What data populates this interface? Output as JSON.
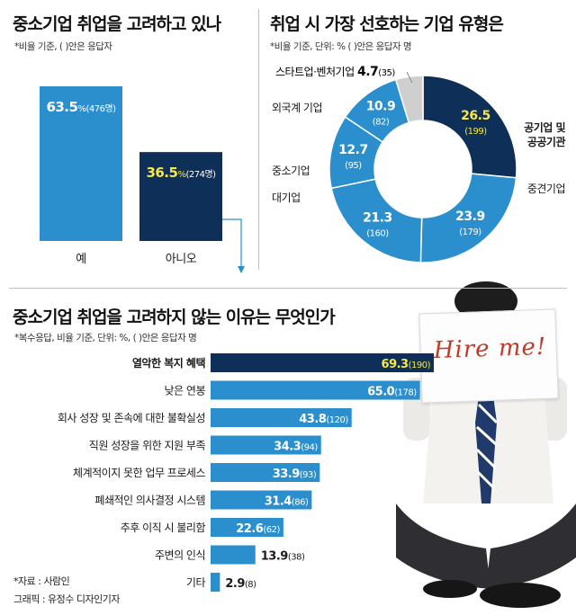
{
  "chart_data": [
    {
      "type": "bar",
      "title": "중소기업 취업을 고려하고 있나",
      "note": "*비율 기준, ( )안은 응답자",
      "categories": [
        "예",
        "아니오"
      ],
      "values": [
        63.5,
        36.5
      ],
      "value_labels": [
        "63.5",
        "36.5"
      ],
      "unit": "%",
      "counts": [
        "(476명)",
        "(274명)"
      ],
      "colors": [
        "#2b8fce",
        "#0e2f57"
      ]
    },
    {
      "type": "pie",
      "title": "취업 시 가장 선호하는 기업 유형은",
      "note": "*비율 기준, 단위: % ( )안은 응답자 명",
      "slices": [
        {
          "label": "공기업 및 공공기관",
          "value": 26.5,
          "value_label": "26.5",
          "count": "(199)",
          "color": "#0e2f57"
        },
        {
          "label": "중견기업",
          "value": 23.9,
          "value_label": "23.9",
          "count": "(179)",
          "color": "#2b8fce"
        },
        {
          "label": "대기업",
          "value": 21.3,
          "value_label": "21.3",
          "count": "(160)",
          "color": "#2b8fce"
        },
        {
          "label": "중소기업",
          "value": 12.7,
          "value_label": "12.7",
          "count": "(95)",
          "color": "#2b8fce"
        },
        {
          "label": "외국계 기업",
          "value": 10.9,
          "value_label": "10.9",
          "count": "(82)",
          "color": "#2b8fce"
        },
        {
          "label": "스타트업·벤처기업",
          "value": 4.7,
          "value_label": "4.7",
          "count": "(35)",
          "color": "#cfcfcf"
        }
      ]
    },
    {
      "type": "bar",
      "orientation": "horizontal",
      "title": "중소기업 취업을 고려하지 않는 이유는 무엇인가",
      "note": "*복수응답, 비율 기준, 단위: %, ( )안은 응답자 명",
      "categories": [
        "열악한 복지 혜택",
        "낮은 연봉",
        "회사 성장 및 존속에 대한 불확실성",
        "직원 성장을 위한 지원 부족",
        "체계적이지 못한 업무 프로세스",
        "폐쇄적인 의사결정 시스템",
        "추후 이직 시 불리함",
        "주변의 인식",
        "기타"
      ],
      "values": [
        69.3,
        65.0,
        43.8,
        34.3,
        33.9,
        31.4,
        22.6,
        13.9,
        2.9
      ],
      "value_labels": [
        "69.3",
        "65.0",
        "43.8",
        "34.3",
        "33.9",
        "31.4",
        "22.6",
        "13.9",
        "2.9"
      ],
      "counts": [
        "(190)",
        "(178)",
        "(120)",
        "(94)",
        "(93)",
        "(86)",
        "(62)",
        "(38)",
        "(8)"
      ],
      "highlight_color": "#0e2f57",
      "bar_color": "#2b8fce"
    }
  ],
  "sign_text": "Hire me!",
  "footer": {
    "source": "*자료 : 사람인",
    "credit": "그래픽 : 유정수 디자인기자"
  }
}
